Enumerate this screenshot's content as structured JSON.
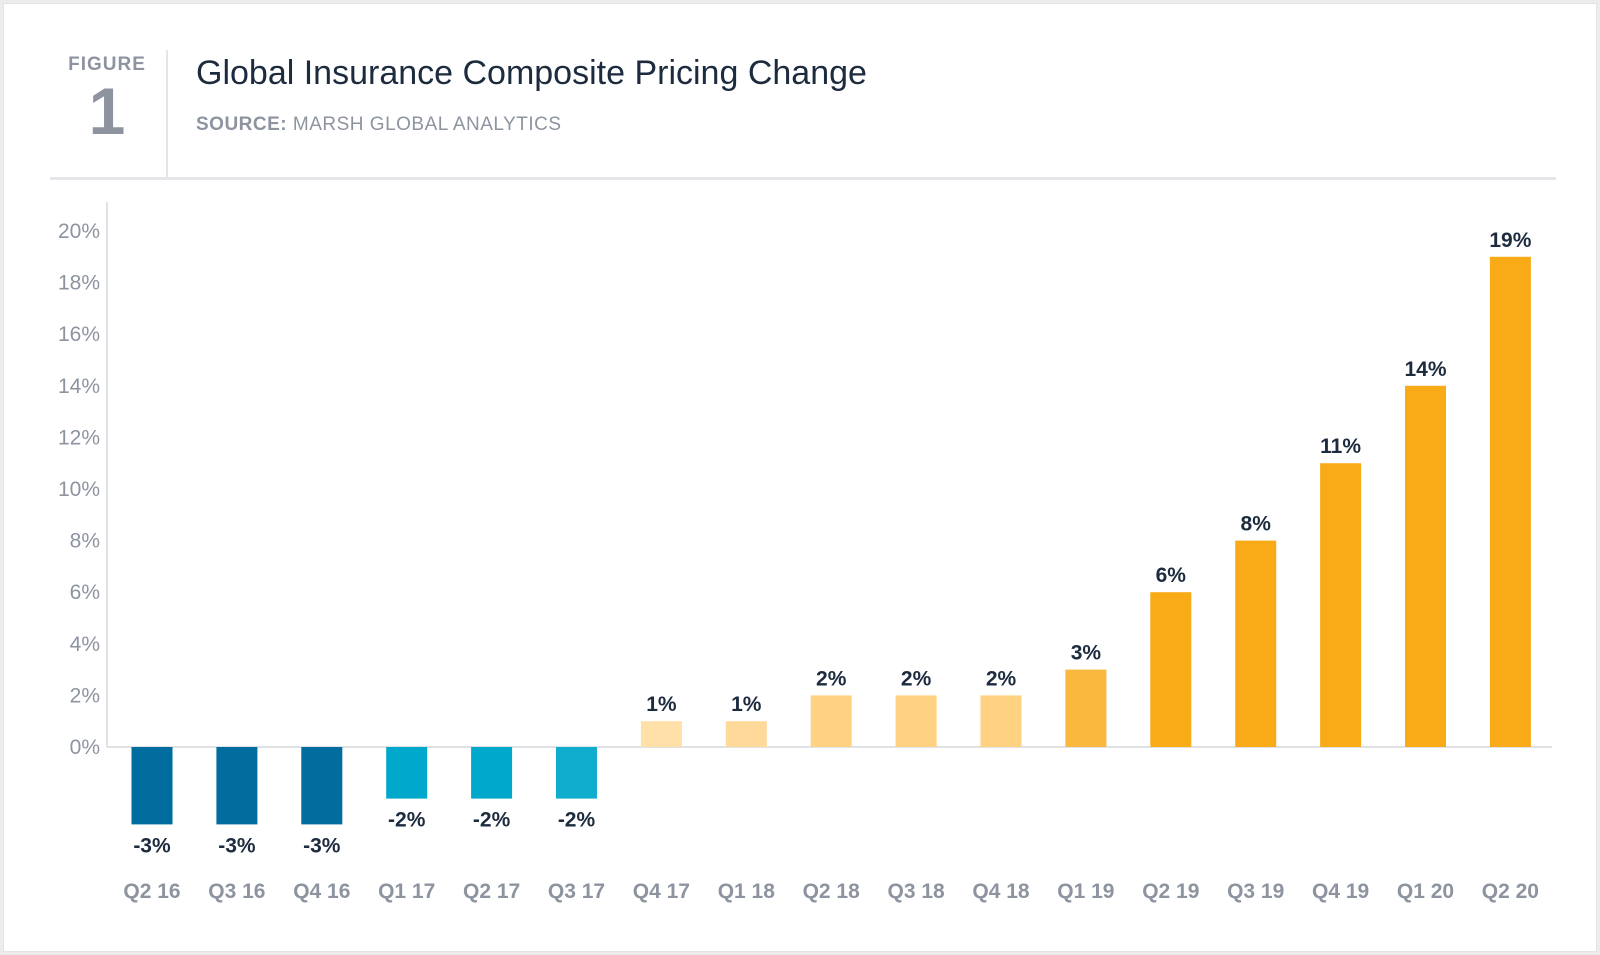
{
  "header": {
    "figure_label": "FIGURE",
    "figure_number": "1",
    "title": "Global Insurance Composite Pricing Change",
    "source_label": "SOURCE:",
    "source_value": "MARSH GLOBAL ANALYTICS"
  },
  "chart_data": {
    "type": "bar",
    "title": "Global Insurance Composite Pricing Change",
    "xlabel": "",
    "ylabel": "",
    "ylim": [
      -3,
      20
    ],
    "yticks": [
      0,
      2,
      4,
      6,
      8,
      10,
      12,
      14,
      16,
      18,
      20
    ],
    "ytick_labels": [
      "0%",
      "2%",
      "4%",
      "6%",
      "8%",
      "10%",
      "12%",
      "14%",
      "16%",
      "18%",
      "20%"
    ],
    "grid": false,
    "categories": [
      "Q2 16",
      "Q3 16",
      "Q4 16",
      "Q1 17",
      "Q2 17",
      "Q3 17",
      "Q4 17",
      "Q1 18",
      "Q2 18",
      "Q3 18",
      "Q4 18",
      "Q1 19",
      "Q2 19",
      "Q3 19",
      "Q4 19",
      "Q1 20",
      "Q2 20"
    ],
    "values": [
      -3,
      -3,
      -3,
      -2,
      -2,
      -2,
      1,
      1,
      2,
      2,
      2,
      3,
      6,
      8,
      11,
      14,
      19
    ],
    "data_labels": [
      "-3%",
      "-3%",
      "-3%",
      "-2%",
      "-2%",
      "-2%",
      "1%",
      "1%",
      "2%",
      "2%",
      "2%",
      "3%",
      "6%",
      "8%",
      "11%",
      "14%",
      "19%"
    ],
    "colors": [
      "#006d9e",
      "#006d9e",
      "#006d9e",
      "#00a8cc",
      "#00a8cc",
      "#10adcf",
      "#ffe0a8",
      "#ffd99a",
      "#ffd282",
      "#ffd282",
      "#ffd282",
      "#f9b93e",
      "#f8ab17",
      "#f8ab17",
      "#f8ab17",
      "#f8ab17",
      "#f8ab17"
    ]
  }
}
